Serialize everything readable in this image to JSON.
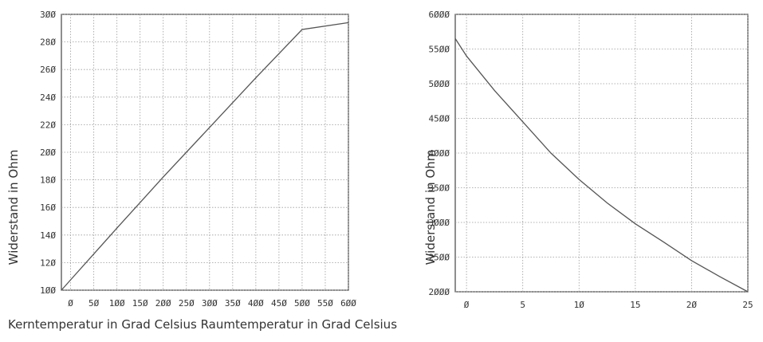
{
  "chart_data": [
    {
      "type": "line",
      "xlabel": "Kerntemperatur in Grad Celsius",
      "ylabel": "Widerstand in Ohm",
      "xlim": [
        -20,
        600
      ],
      "ylim": [
        100,
        300
      ],
      "xticks": [
        0,
        50,
        100,
        150,
        200,
        250,
        300,
        350,
        400,
        450,
        500,
        550,
        600
      ],
      "yticks": [
        100,
        120,
        140,
        160,
        180,
        200,
        220,
        240,
        260,
        280,
        300
      ],
      "grid": true,
      "series": [
        {
          "x": [
            -20,
            0,
            100,
            200,
            300,
            400,
            500,
            600
          ],
          "y": [
            100,
            107.5,
            145,
            182,
            218,
            254,
            289,
            294
          ]
        }
      ]
    },
    {
      "type": "line",
      "xlabel": "Raumtemperatur in Grad Celsius",
      "ylabel": "Widerstand in Ohm",
      "xlim": [
        -1,
        25
      ],
      "ylim": [
        2000,
        6000
      ],
      "xticks": [
        0,
        5,
        10,
        15,
        20,
        25
      ],
      "yticks": [
        2000,
        2500,
        3000,
        3500,
        4000,
        4500,
        5000,
        5500,
        6000
      ],
      "grid": true,
      "series": [
        {
          "x": [
            -1,
            0,
            2.5,
            5,
            7.5,
            10,
            12.5,
            15,
            17.5,
            20,
            22.5,
            25
          ],
          "y": [
            5650,
            5400,
            4900,
            4450,
            4000,
            3620,
            3280,
            2980,
            2720,
            2450,
            2220,
            2000
          ]
        }
      ]
    }
  ],
  "colors": {
    "line": "#555555",
    "axis": "#444444",
    "grid": "#9a9a9a",
    "text": "#333333"
  }
}
